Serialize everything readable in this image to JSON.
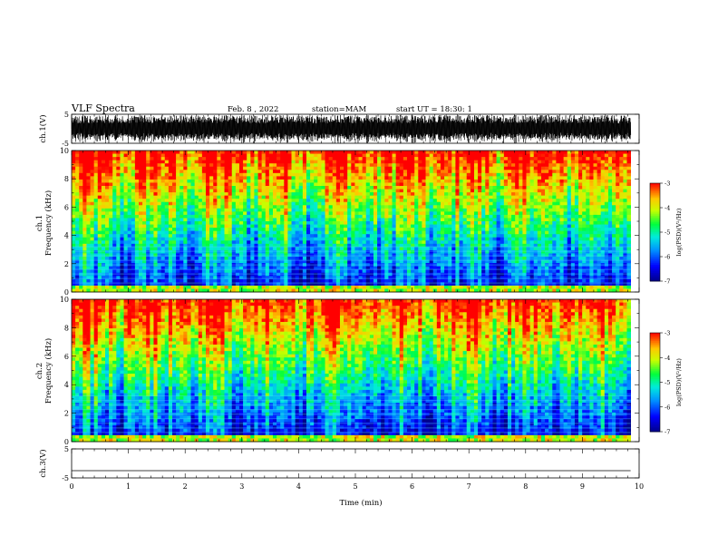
{
  "header": {
    "title": "VLF Spectra",
    "date": "Feb. 8 , 2022",
    "station": "station=MAM",
    "start": "start UT = 18:30: 1"
  },
  "chart_data": [
    {
      "type": "line",
      "name": "waveform-ch1",
      "ylabel": "ch.1(V)",
      "ylim": [
        -5,
        5
      ],
      "yticks": [
        "5",
        "-5"
      ],
      "xlim": [
        0,
        10
      ]
    },
    {
      "type": "heatmap",
      "name": "spectrogram-ch1",
      "ylabel": "ch.1 Frequency (kHz)",
      "ylim": [
        0,
        10
      ],
      "yticks": [
        "0",
        "2",
        "4",
        "6",
        "8",
        "10"
      ],
      "xlim": [
        0,
        9.85
      ],
      "colorbar": {
        "label": "log(PSD)(V²/Hz)",
        "range": [
          -7,
          -3
        ],
        "ticks": [
          "-3",
          "-4",
          "-5",
          "-6",
          "-7"
        ]
      }
    },
    {
      "type": "heatmap",
      "name": "spectrogram-ch2",
      "ylabel": "ch.2 Frequency (kHz)",
      "ylim": [
        0,
        10
      ],
      "yticks": [
        "0",
        "2",
        "4",
        "6",
        "8",
        "10"
      ],
      "xlim": [
        0,
        9.85
      ],
      "colorbar": {
        "label": "log(PSD)(V²/Hz)",
        "range": [
          -7,
          -3
        ],
        "ticks": [
          "-3",
          "-4",
          "-5",
          "-6",
          "-7"
        ]
      }
    },
    {
      "type": "line",
      "name": "waveform-ch3",
      "ylabel": "ch.3(V)",
      "ylim": [
        -5,
        5
      ],
      "yticks": [
        "5",
        "-5"
      ],
      "values": [
        -2.5
      ],
      "xlim": [
        0,
        10
      ]
    }
  ],
  "xaxis": {
    "label": "Time (min)",
    "range": [
      0,
      10
    ],
    "ticks": [
      "0",
      "1",
      "2",
      "3",
      "4",
      "5",
      "6",
      "7",
      "8",
      "9",
      "10"
    ]
  },
  "colors": {
    "low": "#0000a0",
    "mid": "#00ff40",
    "high": "#ff0000"
  }
}
